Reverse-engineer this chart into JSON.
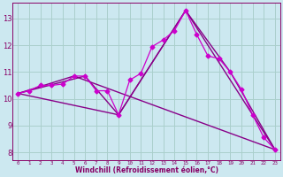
{
  "background_color": "#cce8f0",
  "grid_color": "#aacfcc",
  "xlabel": "Windchill (Refroidissement éolien,°C)",
  "ylabel_ticks": [
    8,
    9,
    10,
    11,
    12,
    13
  ],
  "xlim": [
    -0.5,
    23.5
  ],
  "ylim": [
    7.7,
    13.6
  ],
  "series": [
    {
      "x": [
        0,
        1,
        2,
        3,
        4,
        5,
        6,
        7,
        8,
        9,
        10,
        11,
        12,
        13,
        14,
        15,
        16,
        17,
        18,
        19,
        20,
        21,
        22,
        23
      ],
      "y": [
        10.2,
        10.3,
        10.5,
        10.5,
        10.55,
        10.85,
        10.85,
        10.3,
        10.3,
        9.4,
        10.7,
        10.95,
        11.95,
        12.2,
        12.55,
        13.3,
        12.4,
        11.6,
        11.5,
        11.0,
        10.35,
        9.4,
        8.55,
        8.1
      ],
      "color": "#cc00cc",
      "marker": "D",
      "markersize": 2.5,
      "linewidth": 0.9,
      "zorder": 4
    },
    {
      "x": [
        0,
        5,
        23
      ],
      "y": [
        10.2,
        10.85,
        8.1
      ],
      "color": "#880088",
      "linewidth": 1.0,
      "zorder": 2
    },
    {
      "x": [
        0,
        9,
        15,
        23
      ],
      "y": [
        10.2,
        9.4,
        13.3,
        8.1
      ],
      "color": "#880088",
      "linewidth": 1.0,
      "zorder": 2
    },
    {
      "x": [
        0,
        6,
        9,
        15,
        19,
        23
      ],
      "y": [
        10.2,
        10.85,
        9.4,
        13.3,
        11.0,
        8.1
      ],
      "color": "#880088",
      "linewidth": 1.0,
      "zorder": 2
    }
  ],
  "tick_color": "#880066",
  "spine_color": "#880066",
  "label_color": "#880066",
  "xlabel_fontsize": 5.5,
  "ytick_fontsize": 6.0,
  "xtick_fontsize": 4.2
}
